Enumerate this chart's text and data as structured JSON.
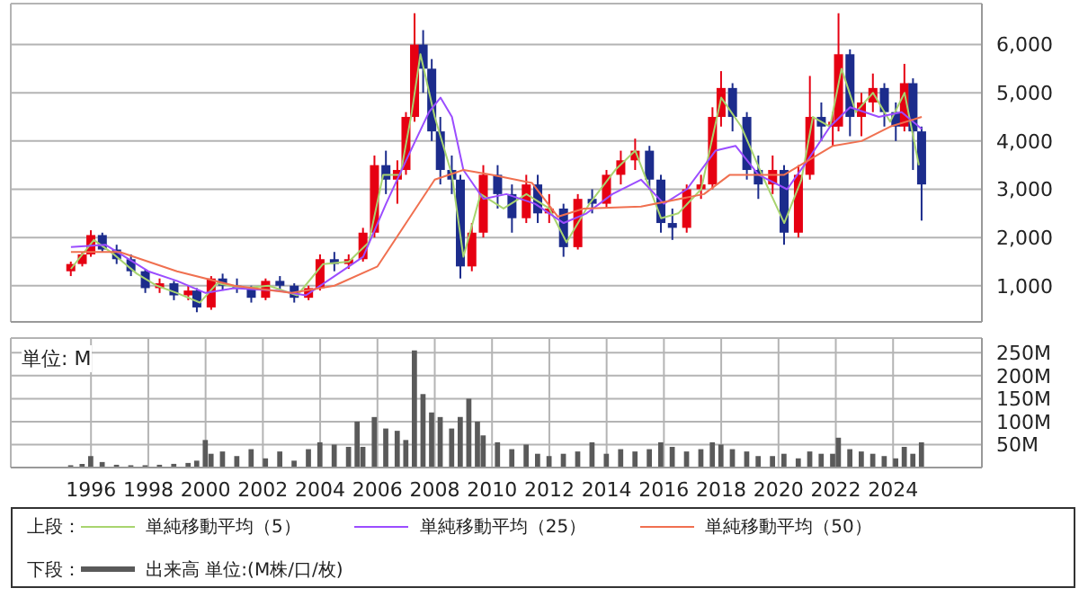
{
  "chart_data": [
    {
      "type": "candlestick",
      "tick_labels": "y",
      "grid": true,
      "legend": "bottom",
      "legend_title": "上段：",
      "xlim": [
        1993.2,
        2027.1
      ],
      "xticks": [
        1996,
        1998,
        2000,
        2002,
        2004,
        2006,
        2008,
        2010,
        2012,
        2014,
        2016,
        2018,
        2020,
        2022,
        2024
      ],
      "ylim": [
        250,
        6850
      ],
      "yticks": [
        {
          "value": 1000,
          "label": "1,000"
        },
        {
          "value": 2000,
          "label": "2,000"
        },
        {
          "value": 3000,
          "label": "3,000"
        },
        {
          "value": 4000,
          "label": "4,000"
        },
        {
          "value": 5000,
          "label": "5,000"
        },
        {
          "value": 6000,
          "label": "6,000"
        }
      ],
      "x": [
        1995.3,
        1995.7,
        1996.0,
        1996.4,
        1996.9,
        1997.4,
        1997.9,
        1998.4,
        1998.9,
        1999.4,
        1999.7,
        2000.2,
        2000.6,
        2001.1,
        2001.6,
        2002.1,
        2002.6,
        2003.1,
        2003.6,
        2004.0,
        2004.5,
        2005.0,
        2005.5,
        2005.9,
        2006.3,
        2006.7,
        2007.0,
        2007.3,
        2007.6,
        2007.9,
        2008.2,
        2008.6,
        2008.9,
        2009.3,
        2009.7,
        2010.2,
        2010.7,
        2011.2,
        2011.6,
        2012.0,
        2012.5,
        2013.0,
        2013.5,
        2014.0,
        2014.5,
        2015.0,
        2015.5,
        2015.9,
        2016.3,
        2016.8,
        2017.3,
        2017.7,
        2018.0,
        2018.4,
        2018.9,
        2019.3,
        2019.8,
        2020.2,
        2020.7,
        2021.1,
        2021.5,
        2021.9,
        2022.1,
        2022.5,
        2022.9,
        2023.3,
        2023.7,
        2024.1,
        2024.4,
        2024.7,
        2025.0
      ],
      "ohlc": [
        [
          1300,
          1500,
          1200,
          1450
        ],
        [
          1450,
          1700,
          1400,
          1650
        ],
        [
          1650,
          2150,
          1600,
          2050
        ],
        [
          2050,
          2100,
          1700,
          1750
        ],
        [
          1750,
          1850,
          1450,
          1550
        ],
        [
          1550,
          1650,
          1200,
          1300
        ],
        [
          1300,
          1350,
          850,
          950
        ],
        [
          950,
          1150,
          850,
          1050
        ],
        [
          1050,
          1100,
          700,
          800
        ],
        [
          800,
          1000,
          700,
          900
        ],
        [
          900,
          950,
          450,
          550
        ],
        [
          550,
          1200,
          500,
          1150
        ],
        [
          1150,
          1250,
          900,
          1000
        ],
        [
          1000,
          1150,
          850,
          950
        ],
        [
          950,
          1000,
          650,
          750
        ],
        [
          750,
          1150,
          700,
          1100
        ],
        [
          1100,
          1200,
          900,
          1000
        ],
        [
          1000,
          1050,
          650,
          750
        ],
        [
          750,
          1000,
          700,
          950
        ],
        [
          950,
          1650,
          900,
          1550
        ],
        [
          1550,
          1700,
          1300,
          1450
        ],
        [
          1450,
          1650,
          1350,
          1550
        ],
        [
          1550,
          2200,
          1500,
          2100
        ],
        [
          2100,
          3700,
          2000,
          3500
        ],
        [
          3500,
          3800,
          2900,
          3200
        ],
        [
          3200,
          3600,
          2700,
          3400
        ],
        [
          3400,
          4600,
          3300,
          4500
        ],
        [
          4500,
          6650,
          4400,
          6000
        ],
        [
          6000,
          6300,
          5000,
          5500
        ],
        [
          5500,
          5700,
          4000,
          4200
        ],
        [
          4200,
          4500,
          3100,
          3400
        ],
        [
          3400,
          3700,
          2900,
          3200
        ],
        [
          3200,
          3300,
          1150,
          1400
        ],
        [
          1400,
          2300,
          1300,
          2100
        ],
        [
          2100,
          3500,
          2000,
          3300
        ],
        [
          3300,
          3500,
          2600,
          2900
        ],
        [
          2900,
          3100,
          2100,
          2400
        ],
        [
          2400,
          3300,
          2300,
          3100
        ],
        [
          3100,
          3300,
          2300,
          2500
        ],
        [
          2500,
          2900,
          2300,
          2600
        ],
        [
          2600,
          2700,
          1600,
          1800
        ],
        [
          1800,
          2900,
          1750,
          2800
        ],
        [
          2800,
          3000,
          2500,
          2700
        ],
        [
          2700,
          3400,
          2600,
          3300
        ],
        [
          3300,
          3800,
          3100,
          3600
        ],
        [
          3600,
          4050,
          3400,
          3800
        ],
        [
          3800,
          3900,
          3000,
          3200
        ],
        [
          3200,
          3300,
          2100,
          2300
        ],
        [
          2300,
          2600,
          1950,
          2200
        ],
        [
          2200,
          3100,
          2100,
          3000
        ],
        [
          3000,
          3300,
          2800,
          3100
        ],
        [
          3100,
          4700,
          3000,
          4500
        ],
        [
          4500,
          5450,
          4300,
          5100
        ],
        [
          5100,
          5200,
          4200,
          4500
        ],
        [
          4500,
          4600,
          3200,
          3400
        ],
        [
          3400,
          3700,
          2800,
          3100
        ],
        [
          3100,
          3700,
          2900,
          3400
        ],
        [
          3400,
          3500,
          1850,
          2100
        ],
        [
          2100,
          3500,
          2000,
          3300
        ],
        [
          3300,
          5350,
          3200,
          4500
        ],
        [
          4500,
          4800,
          4000,
          4300
        ],
        [
          4300,
          4600,
          3900,
          4400
        ],
        [
          4300,
          6650,
          4200,
          5800
        ],
        [
          5800,
          5900,
          4100,
          4500
        ],
        [
          4500,
          5000,
          4100,
          4800
        ],
        [
          4800,
          5400,
          4600,
          5100
        ],
        [
          5100,
          5200,
          4300,
          4600
        ],
        [
          4600,
          4800,
          4000,
          4300
        ],
        [
          4300,
          5600,
          4200,
          5200
        ],
        [
          5200,
          5300,
          3400,
          4200
        ],
        [
          4200,
          4300,
          2350,
          3100
        ]
      ],
      "colors": [
        "#e60012",
        "#e60012",
        "#e60012",
        "#1c2c8c",
        "#1c2c8c",
        "#1c2c8c",
        "#1c2c8c",
        "#e60012",
        "#1c2c8c",
        "#e60012",
        "#1c2c8c",
        "#e60012",
        "#1c2c8c",
        "#1c2c8c",
        "#1c2c8c",
        "#e60012",
        "#1c2c8c",
        "#1c2c8c",
        "#e60012",
        "#e60012",
        "#1c2c8c",
        "#e60012",
        "#e60012",
        "#e60012",
        "#1c2c8c",
        "#e60012",
        "#e60012",
        "#e60012",
        "#1c2c8c",
        "#1c2c8c",
        "#1c2c8c",
        "#1c2c8c",
        "#1c2c8c",
        "#e60012",
        "#e60012",
        "#1c2c8c",
        "#1c2c8c",
        "#e60012",
        "#1c2c8c",
        "#e60012",
        "#1c2c8c",
        "#e60012",
        "#1c2c8c",
        "#e60012",
        "#e60012",
        "#e60012",
        "#1c2c8c",
        "#1c2c8c",
        "#1c2c8c",
        "#e60012",
        "#e60012",
        "#e60012",
        "#e60012",
        "#1c2c8c",
        "#1c2c8c",
        "#1c2c8c",
        "#e60012",
        "#1c2c8c",
        "#e60012",
        "#e60012",
        "#1c2c8c",
        "#e60012",
        "#e60012",
        "#1c2c8c",
        "#e60012",
        "#e60012",
        "#1c2c8c",
        "#1c2c8c",
        "#e60012",
        "#1c2c8c",
        "#1c2c8c"
      ],
      "series": [
        {
          "type": "line",
          "name": "単純移動平均（5）",
          "color": "#a8d46f",
          "x": [
            1995.3,
            1996.1,
            1996.8,
            1997.6,
            1998.3,
            1999.0,
            1999.8,
            2000.4,
            2001.3,
            2002.2,
            2003.2,
            2004.1,
            2005.0,
            2005.7,
            2006.2,
            2006.8,
            2007.2,
            2007.5,
            2008.0,
            2008.6,
            2009.0,
            2009.6,
            2010.4,
            2011.2,
            2012.0,
            2012.6,
            2013.4,
            2014.3,
            2015.0,
            2015.9,
            2016.5,
            2017.3,
            2018.0,
            2018.7,
            2019.5,
            2020.2,
            2020.8,
            2021.2,
            2021.8,
            2022.2,
            2022.7,
            2023.3,
            2023.9,
            2024.4,
            2024.9
          ],
          "values": [
            1350,
            1950,
            1650,
            1250,
            1000,
            850,
            650,
            1050,
            950,
            1000,
            800,
            1450,
            1500,
            1900,
            3300,
            3300,
            4600,
            5800,
            4500,
            3300,
            1600,
            2900,
            2600,
            2900,
            2600,
            1900,
            2700,
            3400,
            3800,
            2400,
            2500,
            3000,
            4900,
            4300,
            3200,
            2300,
            3200,
            4500,
            4300,
            5500,
            4600,
            5000,
            4400,
            5000,
            3500
          ]
        },
        {
          "type": "line",
          "name": "単純移動平均（25）",
          "color": "#9b4dff",
          "x": [
            1995.3,
            1996.5,
            1998.0,
            1999.0,
            2000.0,
            2001.0,
            2002.5,
            2003.5,
            2004.5,
            2005.5,
            2006.3,
            2007.0,
            2007.8,
            2008.2,
            2008.6,
            2009.0,
            2009.7,
            2010.5,
            2011.5,
            2012.5,
            2013.3,
            2014.2,
            2015.2,
            2016.0,
            2016.8,
            2017.8,
            2018.5,
            2019.3,
            2020.3,
            2020.9,
            2021.8,
            2022.5,
            2023.5,
            2024.3,
            2025.0
          ],
          "values": [
            1800,
            1850,
            1300,
            1100,
            850,
            950,
            900,
            800,
            1200,
            1600,
            2700,
            3600,
            4600,
            4900,
            4500,
            3400,
            2800,
            2900,
            2700,
            2300,
            2500,
            2900,
            3200,
            2700,
            3000,
            3800,
            3900,
            3300,
            3000,
            3500,
            4300,
            4700,
            4500,
            4600,
            4250
          ]
        },
        {
          "type": "line",
          "name": "単純移動平均（50）",
          "color": "#f07050",
          "x": [
            1995.3,
            1997.0,
            1999.0,
            2001.0,
            2003.0,
            2004.5,
            2006.0,
            2007.0,
            2008.0,
            2009.0,
            2010.0,
            2011.4,
            2012.3,
            2013.2,
            2015.2,
            2017.4,
            2018.3,
            2020.2,
            2021.9,
            2022.9,
            2023.9,
            2025.0
          ],
          "values": [
            1700,
            1700,
            1300,
            1000,
            850,
            1000,
            1400,
            2300,
            3200,
            3400,
            3300,
            3130,
            2430,
            2600,
            2640,
            2900,
            3300,
            3300,
            3900,
            4000,
            4300,
            4500
          ]
        }
      ]
    },
    {
      "type": "bar",
      "grid": true,
      "legend": "bottom",
      "legend_title": "下段：",
      "annotations": [
        "単位: M"
      ],
      "xlim": [
        1993.2,
        2027.1
      ],
      "xticks": [
        1996,
        1998,
        2000,
        2002,
        2004,
        2006,
        2008,
        2010,
        2012,
        2014,
        2016,
        2018,
        2020,
        2022,
        2024
      ],
      "ylim": [
        0,
        282
      ],
      "yticks": [
        {
          "value": 50,
          "label": "50M"
        },
        {
          "value": 100,
          "label": "100M"
        },
        {
          "value": 150,
          "label": "150M"
        },
        {
          "value": 200,
          "label": "200M"
        },
        {
          "value": 250,
          "label": "250M"
        }
      ],
      "x": [
        1995.3,
        1995.7,
        1996.0,
        1996.4,
        1996.9,
        1997.4,
        1997.9,
        1998.4,
        1998.9,
        1999.4,
        1999.7,
        2000.0,
        2000.2,
        2000.6,
        2001.1,
        2001.6,
        2002.1,
        2002.6,
        2003.1,
        2003.6,
        2004.0,
        2004.5,
        2005.0,
        2005.3,
        2005.5,
        2005.9,
        2006.3,
        2006.7,
        2007.0,
        2007.3,
        2007.6,
        2007.9,
        2008.2,
        2008.6,
        2008.9,
        2009.2,
        2009.5,
        2009.7,
        2010.2,
        2010.7,
        2011.2,
        2011.6,
        2012.0,
        2012.5,
        2013.0,
        2013.5,
        2014.0,
        2014.5,
        2015.0,
        2015.5,
        2015.9,
        2016.3,
        2016.8,
        2017.3,
        2017.7,
        2018.0,
        2018.4,
        2018.9,
        2019.3,
        2019.8,
        2020.2,
        2020.7,
        2021.1,
        2021.5,
        2021.9,
        2022.1,
        2022.5,
        2022.9,
        2023.3,
        2023.7,
        2024.1,
        2024.4,
        2024.7,
        2025.0
      ],
      "series": [
        {
          "name": "出来高 単位:(M株/口/枚)",
          "color": "#5a5a5a",
          "values": [
            5,
            8,
            25,
            12,
            6,
            5,
            5,
            6,
            8,
            10,
            15,
            60,
            30,
            35,
            25,
            40,
            20,
            35,
            15,
            40,
            55,
            50,
            45,
            100,
            45,
            110,
            85,
            80,
            60,
            255,
            160,
            120,
            110,
            85,
            110,
            150,
            100,
            70,
            55,
            40,
            50,
            30,
            25,
            30,
            35,
            55,
            30,
            40,
            35,
            40,
            55,
            45,
            35,
            40,
            55,
            50,
            40,
            35,
            25,
            25,
            30,
            20,
            35,
            30,
            30,
            65,
            40,
            35,
            30,
            25,
            20,
            45,
            30,
            55
          ]
        }
      ]
    }
  ]
}
